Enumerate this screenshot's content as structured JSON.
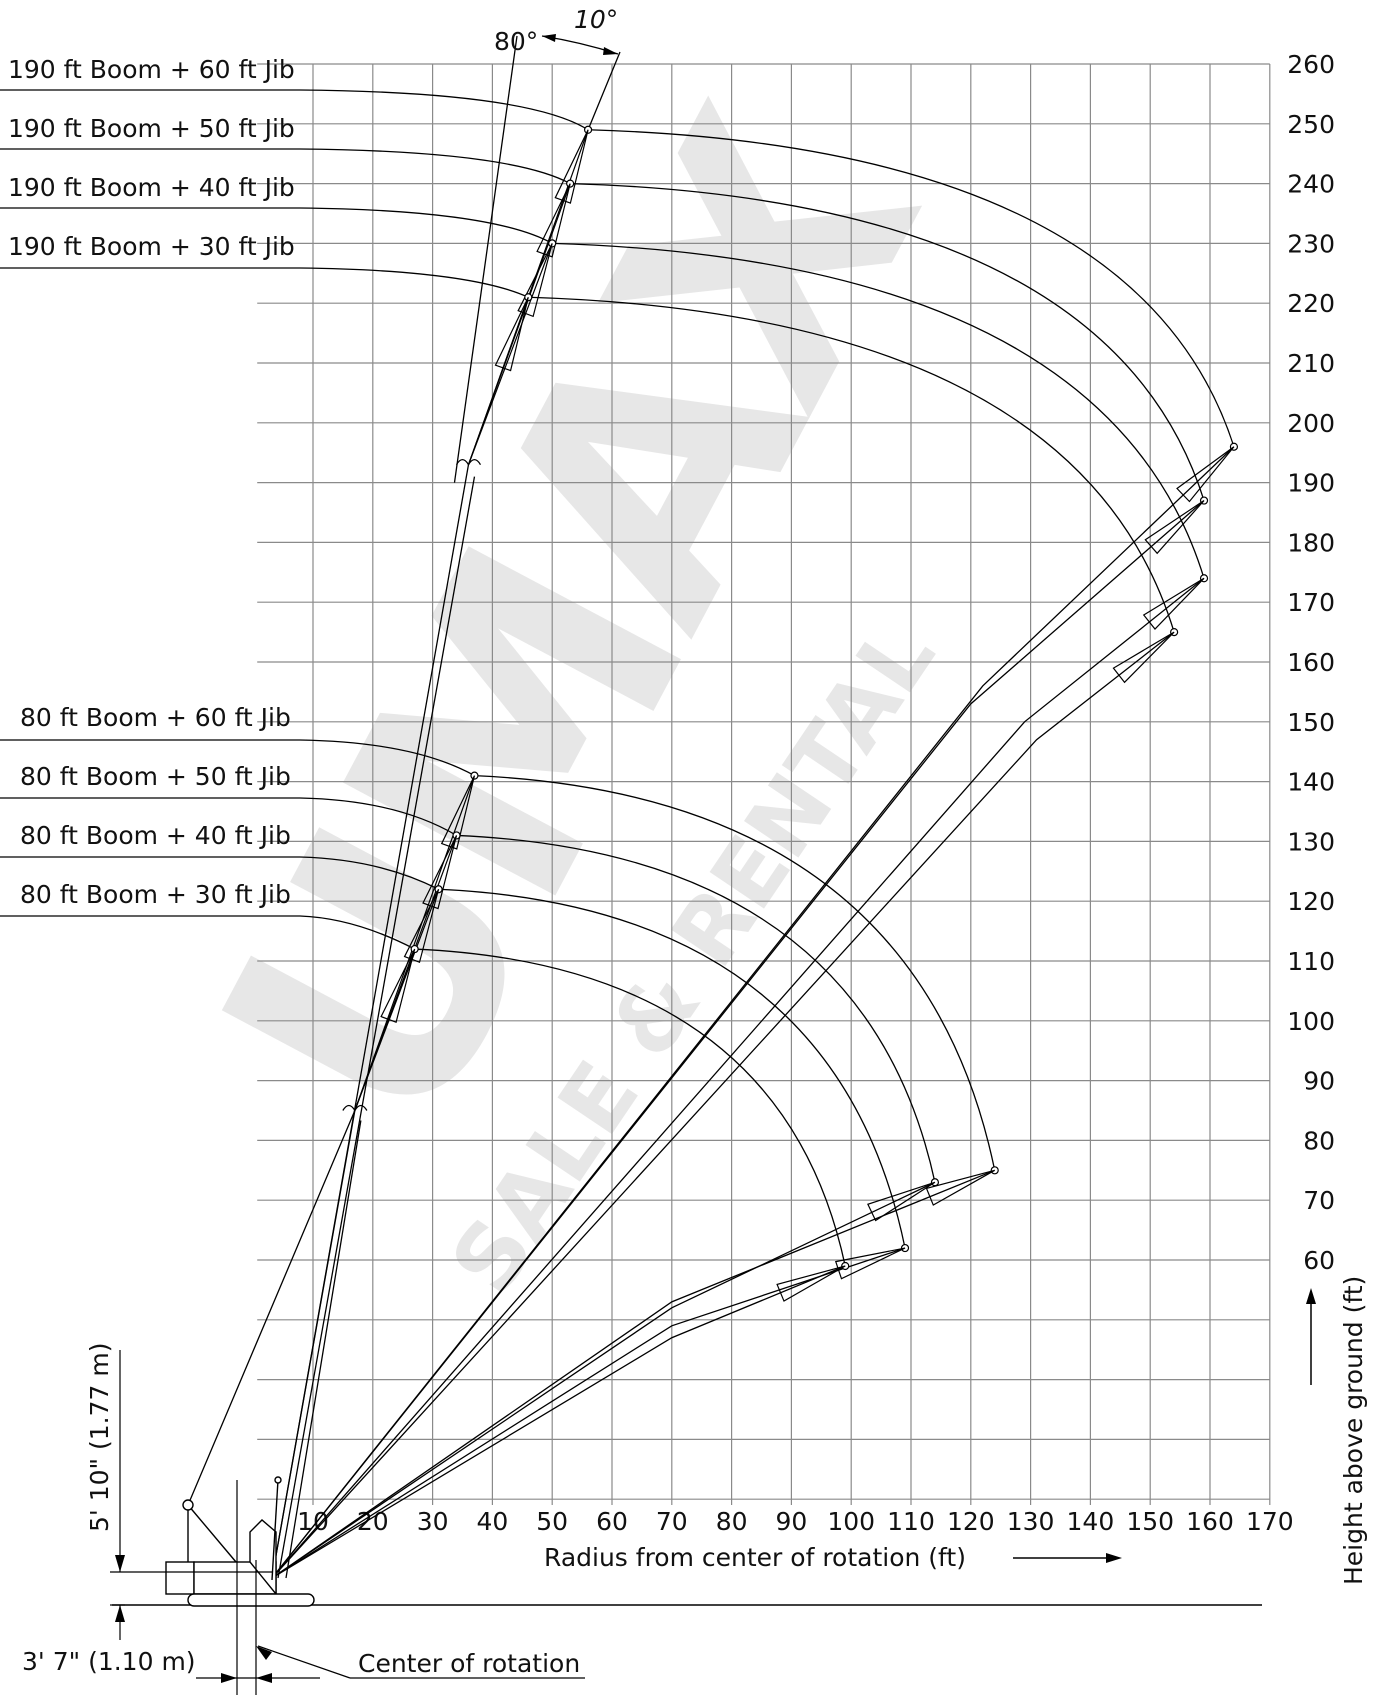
{
  "figure": {
    "x_axis_label": "Radius from center of rotation (ft)",
    "y_axis_label": "Height above ground (ft)",
    "x_ticks": [
      10,
      20,
      30,
      40,
      50,
      60,
      70,
      80,
      90,
      100,
      110,
      120,
      130,
      140,
      150,
      160,
      170
    ],
    "y_ticks": [
      60,
      70,
      80,
      90,
      100,
      110,
      120,
      130,
      140,
      150,
      160,
      170,
      180,
      190,
      200,
      210,
      220,
      230,
      240,
      250,
      260
    ],
    "angle_80": "80°",
    "angle_10": "10°",
    "dim_height": "5' 10\" (1.77 m)",
    "dim_offset": "3' 7\" (1.10 m)",
    "center_of_rotation": "Center of rotation",
    "watermark_main": "UMAX",
    "watermark_sub": "SALE & RENTAL",
    "labels_190": [
      "190 ft Boom + 60 ft Jib",
      "190 ft Boom + 50 ft Jib",
      "190 ft Boom + 40 ft Jib",
      "190 ft Boom + 30 ft Jib"
    ],
    "labels_80": [
      "80 ft Boom + 60 ft Jib",
      "80 ft Boom + 50 ft Jib",
      "80 ft Boom + 40 ft Jib",
      "80 ft Boom + 30 ft Jib"
    ]
  },
  "chart_data": {
    "type": "working range diagram",
    "xlim": [
      10,
      170
    ],
    "ylim_grid": [
      0,
      260
    ],
    "boom_angle_deg": 80,
    "jib_offset_deg": 10,
    "boom_190_tip": [
      36,
      193
    ],
    "boom_80_tip": [
      17,
      85
    ],
    "jib_tips_upright": [
      {
        "config": "190 ft Boom + 60 ft Jib",
        "tip": [
          56,
          249
        ]
      },
      {
        "config": "190 ft Boom + 50 ft Jib",
        "tip": [
          53,
          240
        ]
      },
      {
        "config": "190 ft Boom + 40 ft Jib",
        "tip": [
          50,
          230
        ]
      },
      {
        "config": "190 ft Boom + 30 ft Jib",
        "tip": [
          46,
          221
        ]
      },
      {
        "config": "80 ft Boom + 60 ft Jib",
        "tip": [
          37,
          141
        ]
      },
      {
        "config": "80 ft Boom + 50 ft Jib",
        "tip": [
          34,
          131
        ]
      },
      {
        "config": "80 ft Boom + 40 ft Jib",
        "tip": [
          31,
          122
        ]
      },
      {
        "config": "80 ft Boom + 30 ft Jib",
        "tip": [
          27,
          112
        ]
      }
    ],
    "jib_tips_lowered": [
      {
        "config": "190 ft Boom + 60 ft Jib",
        "tip": [
          164,
          196
        ]
      },
      {
        "config": "190 ft Boom + 50 ft Jib",
        "tip": [
          159,
          187
        ]
      },
      {
        "config": "190 ft Boom + 40 ft Jib",
        "tip": [
          159,
          174
        ]
      },
      {
        "config": "190 ft Boom + 30 ft Jib",
        "tip": [
          154,
          165
        ]
      },
      {
        "config": "80 ft Boom + 60 ft Jib",
        "tip": [
          124,
          75
        ]
      },
      {
        "config": "80 ft Boom + 50 ft Jib",
        "tip": [
          114,
          73
        ]
      },
      {
        "config": "80 ft Boom + 40 ft Jib",
        "tip": [
          109,
          62
        ]
      },
      {
        "config": "80 ft Boom + 30 ft Jib",
        "tip": [
          99,
          59
        ]
      }
    ]
  }
}
